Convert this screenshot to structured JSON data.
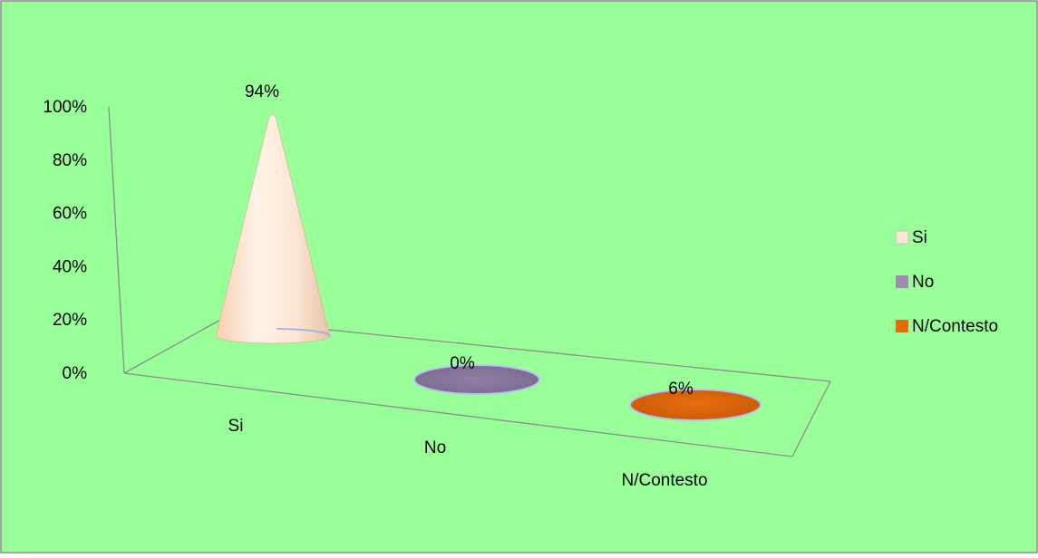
{
  "chart_data": {
    "type": "bar",
    "shape": "3d-cone",
    "categories": [
      "Si",
      "No",
      "N/Contesto"
    ],
    "values": [
      94,
      0,
      6
    ],
    "data_labels": [
      "94%",
      "0%",
      "6%"
    ],
    "ylim": [
      0,
      100
    ],
    "y_ticks": [
      "0%",
      "20%",
      "40%",
      "60%",
      "80%",
      "100%"
    ],
    "legend_position": "right",
    "legend": [
      {
        "label": "Si",
        "color": "#fde6d2"
      },
      {
        "label": "No",
        "color": "#9e8db0"
      },
      {
        "label": "N/Contesto",
        "color": "#e36c09"
      }
    ],
    "grid": false,
    "background_color": "#99ff99",
    "colors": [
      "#fde6d2",
      "#8f7fa3",
      "#e36c09"
    ]
  }
}
